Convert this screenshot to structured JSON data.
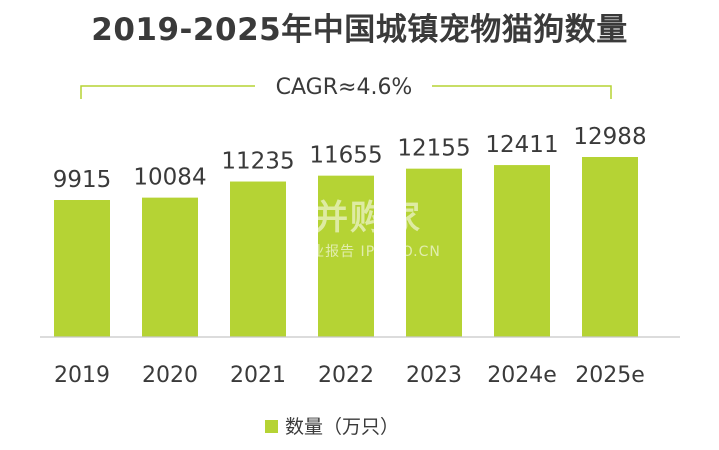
{
  "chart_data": {
    "type": "bar",
    "title": "2019-2025年中国城镇宠物猫狗数量",
    "categories": [
      "2019",
      "2020",
      "2021",
      "2022",
      "2023",
      "2024e",
      "2025e"
    ],
    "series": [
      {
        "name": "数量（万只）",
        "values": [
          9915,
          10084,
          11235,
          11655,
          12155,
          12411,
          12988
        ]
      }
    ],
    "annotation": "CAGR≈4.6%",
    "legend_position": "bottom",
    "bar_color": "#b5d334",
    "axis_color": "#c8c8c8",
    "grid": false
  },
  "watermark": {
    "main": "并购家",
    "sub": "行业报告 IPOIPO.CN"
  }
}
